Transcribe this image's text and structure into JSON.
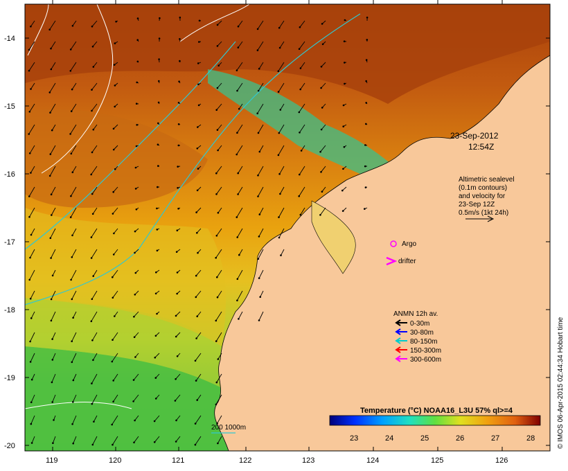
{
  "map": {
    "lat_ticks": [
      "-14",
      "-15",
      "-16",
      "-17",
      "-18",
      "-19",
      "-20"
    ],
    "lon_ticks": [
      "119",
      "120",
      "121",
      "122",
      "123",
      "124",
      "125",
      "126"
    ],
    "date_title": "23-Sep-2012",
    "time_title": "12:54Z",
    "sealevel_note": [
      "Altimetric sealevel",
      "(0.1m contours)",
      "and velocity for",
      "23-Sep 12Z",
      "0.5m/s (1kt 24h)"
    ],
    "argo_label": "Argo",
    "drifter_label": "drifter",
    "anmn": {
      "title": "ANMN 12h av.",
      "items": [
        {
          "label": "0-30m",
          "color": "#000000"
        },
        {
          "label": "30-80m",
          "color": "#0000ff"
        },
        {
          "label": "80-150m",
          "color": "#00cccc"
        },
        {
          "label": "150-300m",
          "color": "#ff0000"
        },
        {
          "label": "300-600m",
          "color": "#ff00ff"
        }
      ]
    },
    "depth_legend": "200  1000m",
    "colorbar": {
      "title": "Temperature (°C) NOAA16_L3U 57% ql>=4",
      "ticks": [
        "23",
        "24",
        "25",
        "26",
        "27",
        "28"
      ]
    },
    "credit": "© IMOS 06-Apr-2015 02:44:34 Hobart time",
    "colors": {
      "land": "#f8c89a",
      "warm": "#c05a10",
      "mid": "#e8a010",
      "cool": "#40c040",
      "argo": "#ff00ff",
      "contour_cyan": "#30c8d0"
    }
  }
}
